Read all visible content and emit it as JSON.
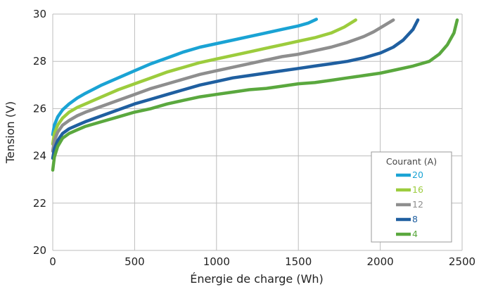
{
  "chart_data": {
    "type": "line",
    "title": "",
    "xlabel": "Énergie de charge (Wh)",
    "ylabel": "Tension (V)",
    "xlim": [
      0,
      2500
    ],
    "ylim": [
      20,
      30
    ],
    "xticks": [
      0,
      500,
      1000,
      1500,
      2000,
      2500
    ],
    "yticks": [
      20,
      22,
      24,
      26,
      28,
      30
    ],
    "grid": true,
    "legend": {
      "title": "Courant (A)",
      "placement": "bottom-right"
    },
    "series": [
      {
        "name": "20",
        "color": "#1aa3d4",
        "x": [
          0,
          10,
          30,
          60,
          100,
          150,
          200,
          300,
          400,
          500,
          600,
          700,
          800,
          900,
          1000,
          1100,
          1200,
          1300,
          1400,
          1500,
          1560,
          1610
        ],
        "y": [
          24.9,
          25.3,
          25.65,
          25.95,
          26.2,
          26.45,
          26.65,
          27.0,
          27.3,
          27.6,
          27.9,
          28.15,
          28.4,
          28.6,
          28.75,
          28.9,
          29.05,
          29.2,
          29.35,
          29.5,
          29.62,
          29.78
        ]
      },
      {
        "name": "16",
        "color": "#9ccc3d",
        "x": [
          0,
          10,
          30,
          60,
          100,
          150,
          200,
          300,
          400,
          500,
          600,
          700,
          800,
          900,
          1000,
          1100,
          1200,
          1300,
          1400,
          1500,
          1600,
          1700,
          1780,
          1850
        ],
        "y": [
          24.5,
          24.95,
          25.3,
          25.6,
          25.85,
          26.05,
          26.2,
          26.5,
          26.8,
          27.05,
          27.3,
          27.55,
          27.75,
          27.95,
          28.1,
          28.25,
          28.4,
          28.55,
          28.7,
          28.85,
          29.0,
          29.2,
          29.45,
          29.75
        ]
      },
      {
        "name": "12",
        "color": "#8e8e8e",
        "x": [
          0,
          10,
          30,
          60,
          100,
          150,
          200,
          300,
          400,
          500,
          600,
          700,
          800,
          900,
          1000,
          1100,
          1200,
          1300,
          1400,
          1500,
          1600,
          1700,
          1800,
          1900,
          1960,
          2020,
          2080
        ],
        "y": [
          24.2,
          24.65,
          25.0,
          25.3,
          25.5,
          25.7,
          25.85,
          26.1,
          26.35,
          26.6,
          26.85,
          27.05,
          27.25,
          27.45,
          27.6,
          27.75,
          27.9,
          28.05,
          28.2,
          28.3,
          28.45,
          28.6,
          28.8,
          29.05,
          29.25,
          29.5,
          29.75
        ]
      },
      {
        "name": "8",
        "color": "#1f5fa0",
        "x": [
          0,
          10,
          30,
          60,
          100,
          150,
          200,
          300,
          400,
          500,
          600,
          700,
          800,
          900,
          1000,
          1100,
          1200,
          1300,
          1400,
          1500,
          1600,
          1700,
          1800,
          1900,
          2000,
          2080,
          2140,
          2200,
          2230
        ],
        "y": [
          23.9,
          24.3,
          24.65,
          24.95,
          25.15,
          25.3,
          25.45,
          25.7,
          25.95,
          26.2,
          26.4,
          26.6,
          26.8,
          27.0,
          27.15,
          27.3,
          27.4,
          27.5,
          27.6,
          27.7,
          27.8,
          27.9,
          28.0,
          28.15,
          28.35,
          28.6,
          28.9,
          29.35,
          29.75
        ]
      },
      {
        "name": "4",
        "color": "#5aa83e",
        "x": [
          0,
          10,
          30,
          60,
          100,
          150,
          200,
          300,
          400,
          500,
          600,
          700,
          800,
          900,
          1000,
          1100,
          1200,
          1300,
          1400,
          1500,
          1600,
          1700,
          1800,
          1900,
          2000,
          2100,
          2200,
          2300,
          2360,
          2410,
          2450,
          2470
        ],
        "y": [
          23.4,
          23.95,
          24.4,
          24.75,
          24.95,
          25.1,
          25.25,
          25.45,
          25.65,
          25.85,
          26.0,
          26.2,
          26.35,
          26.5,
          26.6,
          26.7,
          26.8,
          26.85,
          26.95,
          27.05,
          27.1,
          27.2,
          27.3,
          27.4,
          27.5,
          27.65,
          27.8,
          28.0,
          28.3,
          28.7,
          29.2,
          29.75
        ]
      }
    ]
  }
}
